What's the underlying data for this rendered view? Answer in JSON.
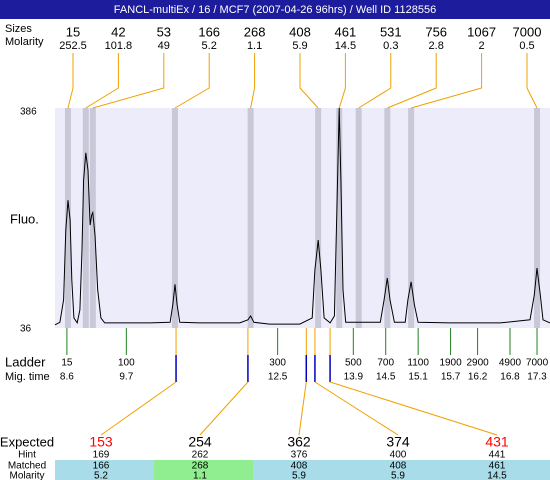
{
  "chart_data": {
    "type": "line",
    "title": "FANCL-multiEx / 16 / MCF7 (2007-04-26 96hrs) / Well ID 1128556",
    "y_label": "Fluo.",
    "ylim": [
      36,
      386
    ],
    "yticks": [
      36,
      386
    ],
    "xlim": [
      8.38,
      17.54
    ],
    "color": "#000000",
    "x": [
      8.38,
      8.47,
      8.54,
      8.58,
      8.62,
      8.66,
      8.69,
      8.73,
      8.79,
      8.84,
      8.88,
      8.91,
      8.95,
      8.99,
      9.03,
      9.06,
      9.08,
      9.12,
      9.17,
      9.23,
      9.3,
      9.58,
      10.14,
      10.51,
      10.56,
      10.6,
      10.64,
      10.69,
      11.06,
      11.8,
      11.95,
      12.0,
      12.06,
      12.35,
      12.91,
      13.14,
      13.19,
      13.25,
      13.3,
      13.36,
      13.47,
      13.55,
      13.6,
      13.64,
      13.67,
      13.71,
      13.76,
      14.03,
      14.4,
      14.47,
      14.53,
      14.58,
      14.66,
      14.86,
      14.91,
      14.97,
      15.03,
      15.1,
      15.69,
      16.62,
      17.17,
      17.25,
      17.3,
      17.36,
      17.41,
      17.54
    ],
    "values": [
      38,
      42,
      78,
      190,
      238,
      206,
      110,
      49,
      41,
      62,
      158,
      270,
      314,
      286,
      198,
      214,
      218,
      182,
      94,
      49,
      41,
      41,
      41,
      42,
      70,
      103,
      70,
      42,
      41,
      41,
      46,
      52,
      42,
      39,
      39,
      49,
      126,
      174,
      126,
      49,
      41,
      52,
      238,
      386,
      270,
      94,
      42,
      42,
      42,
      78,
      113,
      78,
      42,
      42,
      78,
      107,
      70,
      42,
      41,
      41,
      46,
      86,
      129,
      86,
      46,
      41
    ],
    "labels": {
      "sizes": "Sizes",
      "molarity": "Molarity",
      "ladder": "Ladder",
      "mig_time": "Mig. time",
      "expected": "Expected",
      "hint": "Hint",
      "matched": "Matched"
    },
    "fragments": [
      {
        "size": 15,
        "molarity": 252.5,
        "x": 8.62
      },
      {
        "size": 42,
        "molarity": 101.8,
        "x": 8.95
      },
      {
        "size": 53,
        "molarity": 49,
        "x": 9.08
      },
      {
        "size": 166,
        "molarity": 5.2,
        "x": 10.6
      },
      {
        "size": 268,
        "molarity": 1.1,
        "x": 12.0
      },
      {
        "size": 408,
        "molarity": 5.9,
        "x": 13.25
      },
      {
        "size": 461,
        "molarity": 14.5,
        "x": 13.64
      },
      {
        "size": 531,
        "molarity": 0.3,
        "x": 14.0
      },
      {
        "size": 756,
        "molarity": 2.8,
        "x": 14.53
      },
      {
        "size": 1067,
        "molarity": 2,
        "x": 14.97
      },
      {
        "size": 7000,
        "molarity": 0.5,
        "x": 17.3
      }
    ],
    "ladder": [
      {
        "size": 15,
        "mig_time": 8.6
      },
      {
        "size": 100,
        "mig_time": 9.7
      },
      {
        "size": 300,
        "mig_time": 12.5
      },
      {
        "size": 500,
        "mig_time": 13.9
      },
      {
        "size": 700,
        "mig_time": 14.5
      },
      {
        "size": 1100,
        "mig_time": 15.1
      },
      {
        "size": 1900,
        "mig_time": 15.7
      },
      {
        "size": 2900,
        "mig_time": 16.2
      },
      {
        "size": 4900,
        "mig_time": 16.8
      },
      {
        "size": 7000,
        "mig_time": 17.3
      }
    ],
    "expected": [
      {
        "expected": 153,
        "hint": 169,
        "matched": 166,
        "molarity": 5.2,
        "x": 10.62,
        "color": "#ff0000",
        "cell_color": "#a8dce8"
      },
      {
        "expected": 254,
        "hint": 262,
        "matched": 268,
        "molarity": 1.1,
        "x": 11.95,
        "color": "#000000",
        "cell_color": "#90ee90"
      },
      {
        "expected": 362,
        "hint": 376,
        "matched": 408,
        "molarity": 5.9,
        "x": 13.03,
        "color": "#000000",
        "cell_color": "#a8dce8"
      },
      {
        "expected": 374,
        "hint": 400,
        "matched": 408,
        "molarity": 5.9,
        "x": 13.19,
        "color": "#000000",
        "cell_color": "#a8dce8"
      },
      {
        "expected": 431,
        "hint": 441,
        "matched": 461,
        "molarity": 14.5,
        "x": 13.47,
        "color": "#ff0000",
        "cell_color": "#a8dce8"
      }
    ]
  }
}
